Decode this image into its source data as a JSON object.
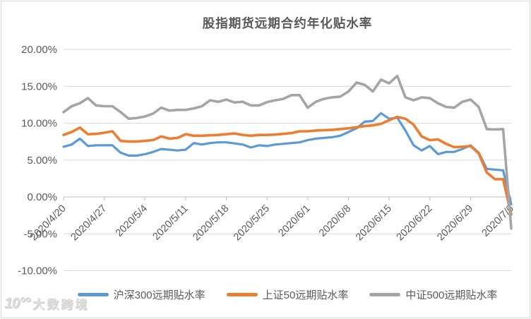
{
  "chart_data": {
    "type": "line",
    "title": "股指期货远期合约年化贴水率",
    "xlabel": "",
    "ylabel": "",
    "ylim": [
      -10,
      20
    ],
    "grid": true,
    "legend_position": "bottom",
    "y_ticks": [
      {
        "label": "20.00%",
        "value": 20
      },
      {
        "label": "15.00%",
        "value": 15
      },
      {
        "label": "10.00%",
        "value": 10
      },
      {
        "label": "5.00%",
        "value": 5
      },
      {
        "label": "0.00%",
        "value": 0
      },
      {
        "label": "-5.00%",
        "value": -5
      },
      {
        "label": "-10.00%",
        "value": -10
      }
    ],
    "x_tick_labels": [
      "2020/4/20",
      "2020/4/27",
      "2020/5/4",
      "2020/5/11",
      "2020/5/18",
      "2020/5/25",
      "2020/6/1",
      "2020/6/8",
      "2020/6/15",
      "2020/6/22",
      "2020/6/29",
      "2020/7/6"
    ],
    "points_per_label": 5,
    "series": [
      {
        "name": "沪深300远期贴水率",
        "color": "#5B9BD5",
        "values": [
          6.8,
          7.1,
          7.9,
          6.9,
          7.0,
          7.0,
          7.0,
          6.0,
          5.6,
          5.6,
          5.8,
          6.1,
          6.5,
          6.4,
          6.3,
          6.4,
          7.3,
          7.1,
          7.3,
          7.4,
          7.4,
          7.25,
          7.1,
          6.7,
          7.0,
          6.9,
          7.1,
          7.2,
          7.3,
          7.4,
          7.7,
          7.9,
          8.0,
          8.1,
          8.3,
          8.8,
          9.3,
          10.2,
          10.3,
          11.35,
          10.6,
          10.75,
          9.0,
          7.0,
          6.3,
          6.9,
          5.8,
          6.1,
          6.1,
          6.5,
          7.0,
          6.0,
          3.8,
          3.7,
          3.6,
          -1.0
        ]
      },
      {
        "name": "上证50远期贴水率",
        "color": "#ED7D31",
        "values": [
          8.4,
          8.8,
          9.4,
          8.5,
          8.55,
          8.7,
          8.9,
          7.6,
          7.5,
          7.5,
          7.6,
          7.7,
          8.2,
          7.9,
          8.0,
          8.5,
          8.3,
          8.3,
          8.35,
          8.4,
          8.5,
          8.6,
          8.4,
          8.3,
          8.4,
          8.4,
          8.45,
          8.55,
          8.65,
          8.9,
          8.9,
          9.0,
          9.05,
          9.1,
          9.2,
          9.3,
          9.45,
          9.6,
          9.7,
          9.9,
          10.4,
          10.85,
          10.6,
          9.8,
          8.2,
          7.7,
          7.8,
          7.2,
          6.75,
          6.8,
          6.9,
          5.9,
          3.3,
          2.4,
          2.4,
          -2.4
        ]
      },
      {
        "name": "中证500远期贴水率",
        "color": "#A5A5A5",
        "values": [
          11.5,
          12.3,
          12.7,
          13.4,
          12.4,
          12.3,
          12.3,
          11.5,
          10.6,
          10.7,
          10.9,
          11.3,
          12.1,
          11.7,
          11.8,
          11.8,
          12.0,
          12.3,
          13.1,
          12.9,
          13.2,
          12.8,
          12.9,
          12.4,
          12.4,
          12.85,
          13.1,
          13.3,
          13.8,
          13.8,
          12.1,
          12.9,
          13.3,
          13.5,
          13.6,
          14.3,
          15.5,
          15.2,
          14.3,
          15.9,
          15.4,
          16.4,
          13.5,
          13.1,
          13.5,
          13.4,
          12.7,
          12.2,
          12.1,
          12.9,
          13.2,
          12.2,
          9.2,
          9.15,
          9.2,
          -4.3
        ]
      }
    ]
  },
  "watermark": {
    "logo": "10°°",
    "text": "大数跨境"
  }
}
